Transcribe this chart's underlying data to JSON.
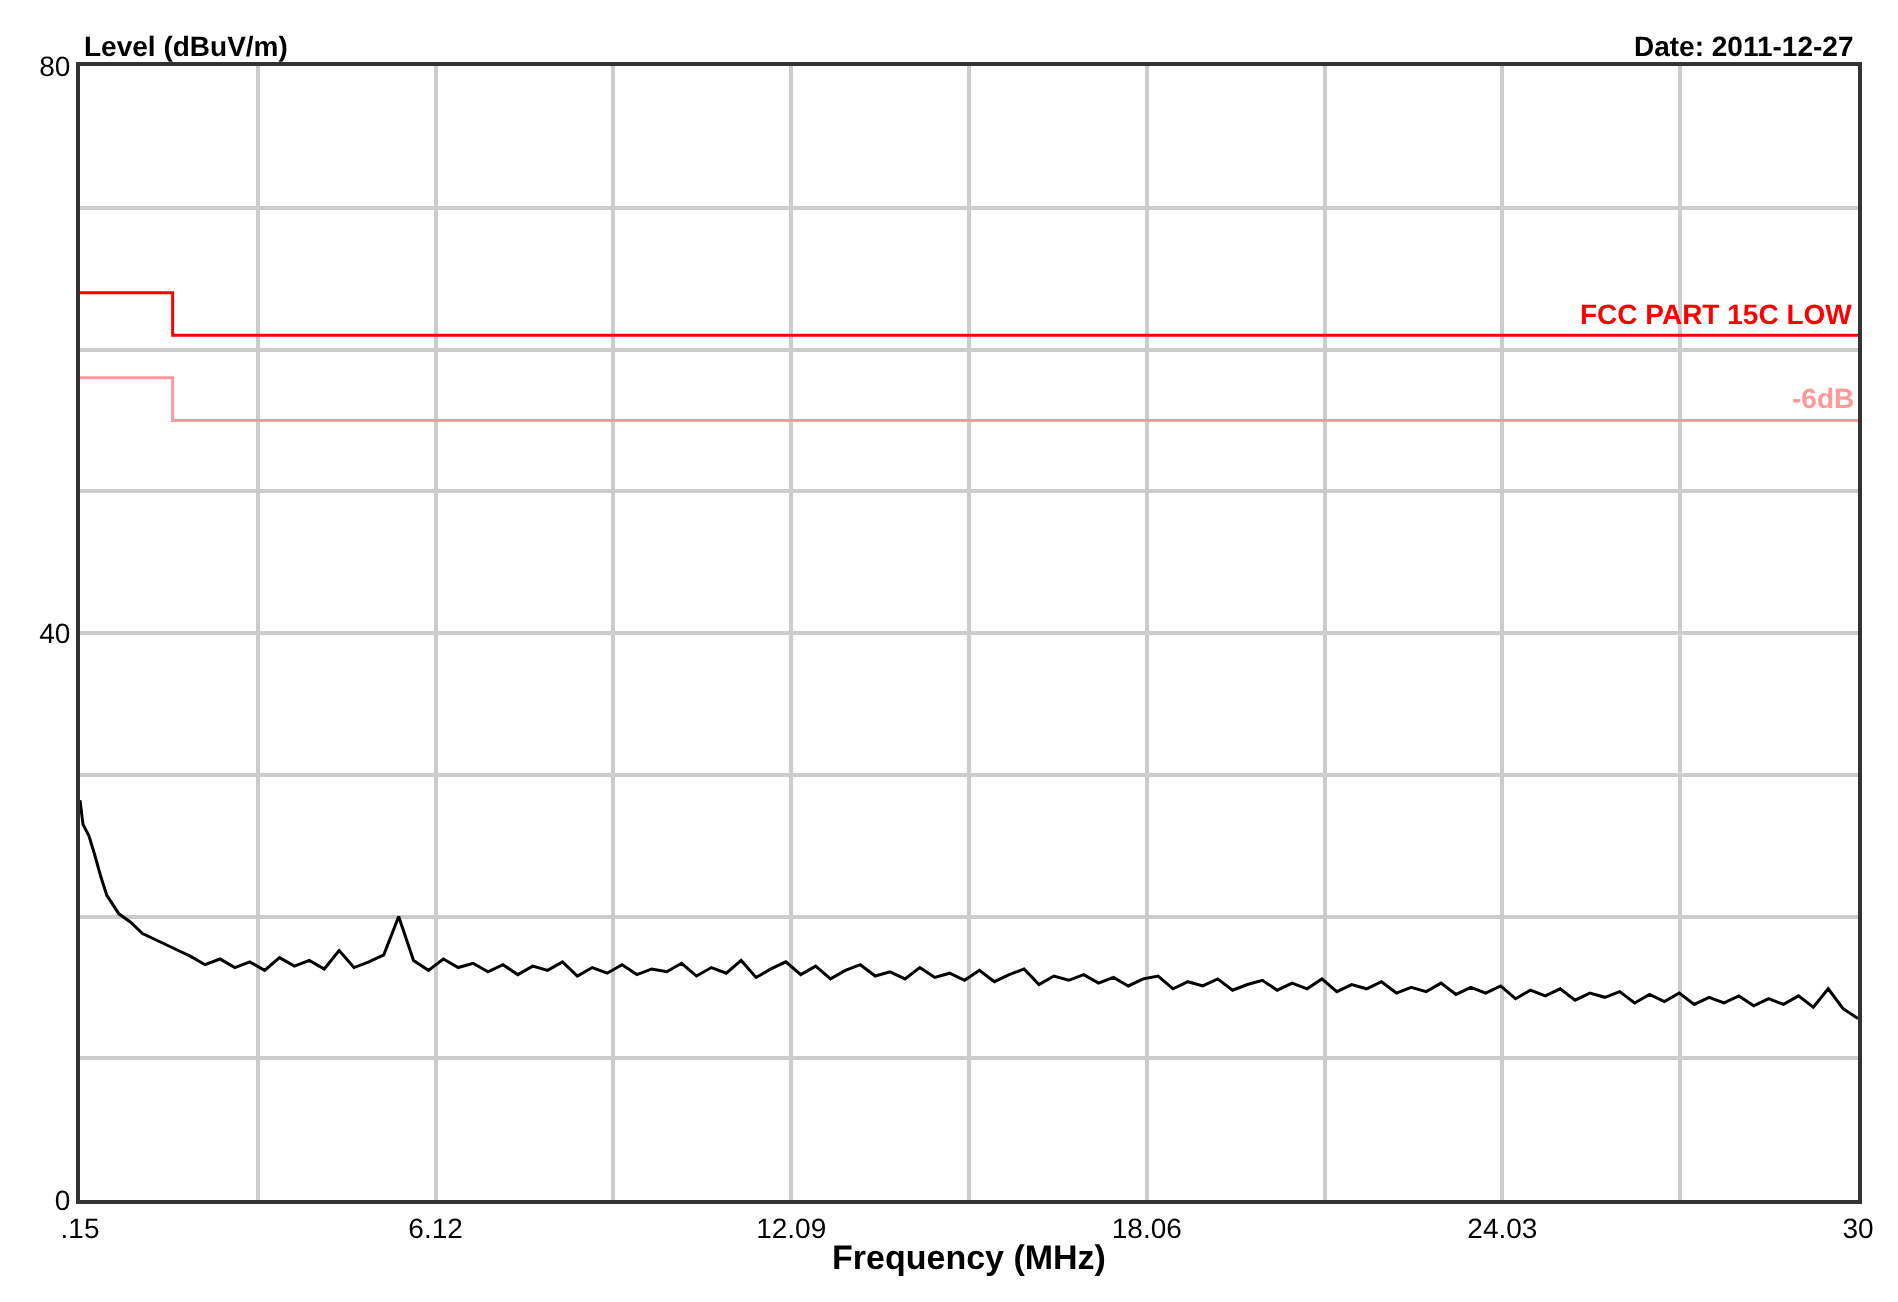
{
  "chart_data": {
    "type": "line",
    "xlabel": "Frequency (MHz)",
    "ylabel": "Level (dBuV/m)",
    "annotations": [
      "Date: 2011-12-27"
    ],
    "xlim": [
      0.15,
      30
    ],
    "ylim": [
      0,
      80
    ],
    "xticks": [
      {
        "value": 0.15,
        "label": ".15"
      },
      {
        "value": 3.135,
        "label": null
      },
      6.12,
      {
        "value": 9.105,
        "label": null
      },
      12.09,
      {
        "value": 15.075,
        "label": null
      },
      18.06,
      {
        "value": 21.045,
        "label": null
      },
      24.03,
      {
        "value": 27.015,
        "label": null
      },
      30
    ],
    "yticks": [
      0,
      {
        "value": 10,
        "label": null
      },
      {
        "value": 20,
        "label": null
      },
      {
        "value": 30,
        "label": null
      },
      40,
      {
        "value": 50,
        "label": null
      },
      {
        "value": 60,
        "label": null
      },
      {
        "value": 70,
        "label": null
      },
      80
    ],
    "grid": true,
    "legend": false,
    "marker": "none",
    "line_style": "solid",
    "series": [
      {
        "name": "FCC PART 15C LOW",
        "type": "step",
        "color": "#ff0000",
        "x": [
          0.15,
          1.705,
          30
        ],
        "values": [
          64,
          61,
          61
        ]
      },
      {
        "name": "-6dB",
        "type": "step",
        "color": "#ff9999",
        "x": [
          0.15,
          1.705,
          30
        ],
        "values": [
          58,
          55,
          55
        ]
      },
      {
        "color": "#000000",
        "x": [
          0.15,
          0.2,
          0.3,
          0.4,
          0.5,
          0.6,
          0.8,
          1.0,
          1.2,
          1.5,
          1.8,
          2.0,
          2.25,
          2.5,
          2.75,
          3.0,
          3.25,
          3.5,
          3.75,
          4.0,
          4.25,
          4.5,
          4.75,
          5.0,
          5.25,
          5.5,
          5.75,
          6.0,
          6.25,
          6.5,
          6.75,
          7.0,
          7.25,
          7.5,
          7.75,
          8.0,
          8.25,
          8.5,
          8.75,
          9.0,
          9.25,
          9.5,
          9.75,
          10.0,
          10.25,
          10.5,
          10.75,
          11.0,
          11.25,
          11.5,
          11.75,
          12.0,
          12.25,
          12.5,
          12.75,
          13.0,
          13.25,
          13.5,
          13.75,
          14.0,
          14.25,
          14.5,
          14.75,
          15.0,
          15.25,
          15.5,
          15.75,
          16.0,
          16.25,
          16.5,
          16.75,
          17.0,
          17.25,
          17.5,
          17.75,
          18.0,
          18.25,
          18.5,
          18.75,
          19.0,
          19.25,
          19.5,
          19.75,
          20.0,
          20.25,
          20.5,
          20.75,
          21.0,
          21.25,
          21.5,
          21.75,
          22.0,
          22.25,
          22.5,
          22.75,
          23.0,
          23.25,
          23.5,
          23.75,
          24.0,
          24.25,
          24.5,
          24.75,
          25.0,
          25.25,
          25.5,
          25.75,
          26.0,
          26.25,
          26.5,
          26.75,
          27.0,
          27.25,
          27.5,
          27.75,
          28.0,
          28.25,
          28.5,
          28.75,
          29.0,
          29.25,
          29.5,
          29.75,
          30.0
        ],
        "values": [
          28.2,
          26.5,
          25.7,
          24.3,
          22.8,
          21.5,
          20.2,
          19.6,
          18.8,
          18.2,
          17.6,
          17.2,
          16.6,
          17.0,
          16.4,
          16.8,
          16.2,
          17.1,
          16.5,
          16.9,
          16.3,
          17.6,
          16.4,
          16.8,
          17.3,
          20.0,
          16.9,
          16.2,
          17.0,
          16.4,
          16.7,
          16.1,
          16.6,
          15.9,
          16.5,
          16.2,
          16.8,
          15.8,
          16.4,
          16.0,
          16.6,
          15.9,
          16.3,
          16.1,
          16.7,
          15.8,
          16.4,
          16.0,
          16.9,
          15.7,
          16.3,
          16.8,
          15.9,
          16.5,
          15.6,
          16.2,
          16.6,
          15.8,
          16.1,
          15.6,
          16.4,
          15.7,
          16.0,
          15.5,
          16.2,
          15.4,
          15.9,
          16.3,
          15.2,
          15.8,
          15.5,
          15.9,
          15.3,
          15.7,
          15.1,
          15.6,
          15.8,
          14.9,
          15.4,
          15.1,
          15.6,
          14.8,
          15.2,
          15.5,
          14.8,
          15.3,
          14.9,
          15.6,
          14.7,
          15.2,
          14.9,
          15.4,
          14.6,
          15.0,
          14.7,
          15.3,
          14.5,
          15.0,
          14.6,
          15.1,
          14.2,
          14.8,
          14.4,
          14.9,
          14.1,
          14.6,
          14.3,
          14.7,
          13.9,
          14.5,
          14.0,
          14.6,
          13.8,
          14.3,
          13.9,
          14.4,
          13.7,
          14.2,
          13.8,
          14.4,
          13.6,
          14.9,
          13.5,
          12.8
        ]
      }
    ]
  }
}
